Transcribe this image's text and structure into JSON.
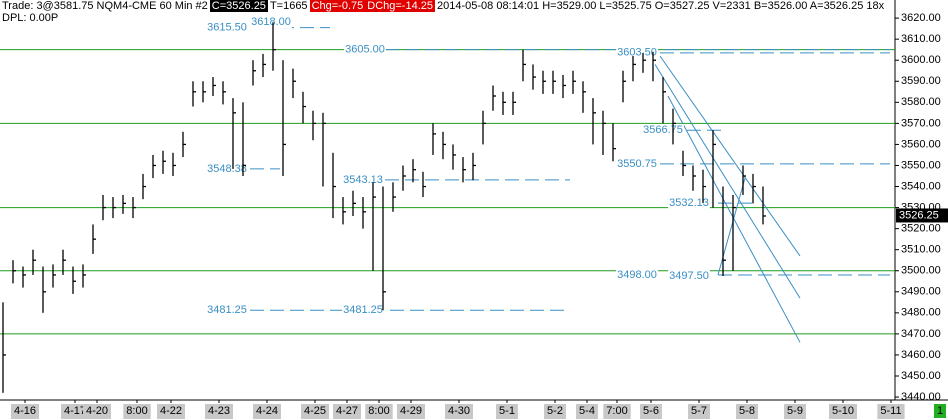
{
  "chart_data": {
    "type": "ohlc",
    "header": [
      {
        "text": "Trade: 3@3581.75  NQM4-CME  60 Min  #2",
        "style": "plain"
      },
      {
        "text": "C=3526.25",
        "style": "dark"
      },
      {
        "text": "T=1665",
        "style": "plain"
      },
      {
        "text": "Chg=-0.75",
        "style": "red"
      },
      {
        "text": "DChg=-14.25",
        "style": "red"
      },
      {
        "text": "2014-05-08 08:14:01 H=3529.00 L=3525.75 O=3527.25 V=2331 B=3526.00 A=3526.25 18x",
        "style": "plain"
      }
    ],
    "subheader": "DPL: 0.00P",
    "color": "#000000",
    "x": [
      0,
      5,
      10,
      15,
      20,
      25,
      30,
      35,
      40,
      45,
      50,
      55,
      60,
      65,
      70,
      75,
      80,
      85,
      90,
      95,
      100,
      105,
      110,
      115,
      120,
      125,
      130,
      135,
      140,
      145,
      150,
      155,
      160,
      165,
      170,
      175,
      180,
      185,
      190,
      195,
      200,
      205,
      210,
      215,
      220,
      225,
      230,
      235,
      240,
      245,
      250,
      255,
      260,
      265,
      270,
      275,
      280,
      285,
      290,
      295,
      300,
      305,
      310,
      315,
      320,
      325,
      330,
      335,
      340,
      345,
      350,
      355,
      360,
      365,
      370,
      375,
      380
    ],
    "high": [
      3485,
      3505,
      3502,
      3510,
      3502,
      3503,
      3510,
      3502,
      3503,
      3522,
      3536,
      3535,
      3536,
      3535,
      3546,
      3555,
      3557,
      3556,
      3566,
      3590,
      3590,
      3592,
      3590,
      3582,
      3580,
      3600,
      3603,
      3618,
      3600,
      3596,
      3585,
      3576,
      3575,
      3556,
      3535,
      3538,
      3535,
      3542,
      3540,
      3542,
      3550,
      3553,
      3547,
      3570,
      3566,
      3560,
      3554,
      3556,
      3576,
      3588,
      3585,
      3585,
      3605,
      3598,
      3595,
      3595,
      3593,
      3595,
      3590,
      3582,
      3576,
      3570,
      3595,
      3602,
      3603.5,
      3604,
      3592,
      3577,
      3557,
      3550,
      3548,
      3566.75,
      3540,
      3536,
      3550,
      3546,
      3540
    ],
    "low": [
      3442,
      3494,
      3492,
      3498,
      3480,
      3492,
      3498,
      3489,
      3492,
      3508,
      3524,
      3525,
      3527,
      3525,
      3534,
      3544,
      3546,
      3545,
      3554,
      3578,
      3580,
      3583,
      3579,
      3548.38,
      3545,
      3588,
      3592,
      3595,
      3545,
      3582,
      3570,
      3562,
      3540,
      3525,
      3522,
      3526,
      3520,
      3500,
      3481.25,
      3528,
      3538,
      3542,
      3535,
      3555,
      3553,
      3548,
      3542,
      3543,
      3560,
      3576,
      3574,
      3574,
      3590,
      3586,
      3584,
      3584,
      3582,
      3584,
      3575,
      3560,
      3555,
      3552,
      3580,
      3590,
      3594,
      3590,
      3570,
      3560,
      3545,
      3538,
      3532.13,
      3530,
      3497.5,
      3500,
      3536,
      3532,
      3522
    ],
    "close": [
      3460,
      3500,
      3498,
      3505,
      3490,
      3498,
      3505,
      3495,
      3498,
      3515,
      3530,
      3530,
      3532,
      3530,
      3540,
      3550,
      3552,
      3550,
      3560,
      3585,
      3585,
      3588,
      3585,
      3575,
      3550,
      3595,
      3598,
      3605,
      3560,
      3590,
      3578,
      3570,
      3570,
      3540,
      3528,
      3532,
      3528,
      3535,
      3490,
      3535,
      3545,
      3548,
      3540,
      3565,
      3560,
      3555,
      3548,
      3550,
      3570,
      3583,
      3580,
      3580,
      3598,
      3592,
      3590,
      3590,
      3588,
      3590,
      3585,
      3575,
      3570,
      3558,
      3590,
      3598,
      3600,
      3600,
      3585,
      3570,
      3550,
      3545,
      3540,
      3560,
      3505,
      3530,
      3545,
      3540,
      3526
    ],
    "xlim": [
      -1.5,
      446
    ],
    "ylim": [
      3438.6,
      3628.6
    ],
    "xticks": [
      {
        "value": 11,
        "label": "4-16"
      },
      {
        "value": 36,
        "label": "4-17"
      },
      {
        "value": 47,
        "label": "4-20"
      },
      {
        "value": 67,
        "label": "8:00"
      },
      {
        "value": 84,
        "label": "4-22"
      },
      {
        "value": 108,
        "label": "4-23"
      },
      {
        "value": 132,
        "label": "4-24"
      },
      {
        "value": 156,
        "label": "4-25"
      },
      {
        "value": 172,
        "label": "4-27"
      },
      {
        "value": 188,
        "label": "8:00"
      },
      {
        "value": 204,
        "label": "4-29"
      },
      {
        "value": 228,
        "label": "4-30"
      },
      {
        "value": 252,
        "label": "5-1"
      },
      {
        "value": 276,
        "label": "5-2"
      },
      {
        "value": 292,
        "label": "5-4"
      },
      {
        "value": 307,
        "label": "7:00"
      },
      {
        "value": 324,
        "label": "5-6"
      },
      {
        "value": 348,
        "label": "5-7"
      },
      {
        "value": 372,
        "label": "5-8"
      },
      {
        "value": 396,
        "label": "5-9"
      },
      {
        "value": 420,
        "label": "5-10"
      },
      {
        "value": 444,
        "label": "5-11"
      }
    ],
    "yticks": [
      {
        "value": 3440,
        "label": "3440.00"
      },
      {
        "value": 3450,
        "label": "3450.00"
      },
      {
        "value": 3460,
        "label": "3460.00"
      },
      {
        "value": 3470,
        "label": "3470.00"
      },
      {
        "value": 3480,
        "label": "3480.00"
      },
      {
        "value": 3490,
        "label": "3490.00"
      },
      {
        "value": 3500,
        "label": "3500.00"
      },
      {
        "value": 3510,
        "label": "3510.00"
      },
      {
        "value": 3520,
        "label": "3520.00"
      },
      {
        "value": 3530,
        "label": "3530.00"
      },
      {
        "value": 3540,
        "label": "3540.00"
      },
      {
        "value": 3550,
        "label": "3550.00"
      },
      {
        "value": 3560,
        "label": "3560.00"
      },
      {
        "value": 3570,
        "label": "3570.00"
      },
      {
        "value": 3580,
        "label": "3580.00"
      },
      {
        "value": 3590,
        "label": "3590.00"
      },
      {
        "value": 3600,
        "label": "3600.00"
      },
      {
        "value": 3610,
        "label": "3610.00"
      },
      {
        "value": 3620,
        "label": "3620.00"
      }
    ],
    "hlines": [
      3605,
      3570,
      3530,
      3500,
      3470
    ],
    "hline_color": "#1e9e1e",
    "level_color": "#3a8fc4",
    "levels": [
      {
        "value": 3615.5,
        "x1": 138.5,
        "x2": 163.5
      },
      {
        "value": 3605,
        "x1": 191,
        "x2": 443.5
      },
      {
        "value": 3603.5,
        "x1": 328.5,
        "x2": 443.5
      },
      {
        "value": 3548.38,
        "x1": 123.5,
        "x2": 138.5
      },
      {
        "value": 3543.13,
        "x1": 191,
        "x2": 283.5
      },
      {
        "value": 3566.75,
        "x1": 342,
        "x2": 362
      },
      {
        "value": 3550.75,
        "x1": 328.5,
        "x2": 443.5
      },
      {
        "value": 3532.13,
        "x1": 357.5,
        "x2": 376
      },
      {
        "value": 3498,
        "x1": 357.5,
        "x2": 443.5
      },
      {
        "value": 3481.25,
        "x1": 123.5,
        "x2": 283.5
      }
    ],
    "annotations": [
      {
        "text": "3615.50",
        "value": 3615.5,
        "x": 112
      },
      {
        "text": "3618.00",
        "value": 3618,
        "x": 134
      },
      {
        "text": "3605.00",
        "value": 3605,
        "x": 181
      },
      {
        "text": "3603.50",
        "value": 3603.5,
        "x": 317
      },
      {
        "text": "3548.38",
        "value": 3548.38,
        "x": 112
      },
      {
        "text": "3543.13",
        "value": 3543.13,
        "x": 180
      },
      {
        "text": "3566.75",
        "value": 3566.75,
        "x": 330
      },
      {
        "text": "3550.75",
        "value": 3550.75,
        "x": 317
      },
      {
        "text": "3532.13",
        "value": 3532.13,
        "x": 343
      },
      {
        "text": "3498.00",
        "value": 3498,
        "x": 317
      },
      {
        "text": "3497.50",
        "value": 3497.5,
        "x": 343
      },
      {
        "text": "3481.25",
        "value": 3481.25,
        "x": 112
      },
      {
        "text": "3481.25",
        "value": 3481.25,
        "x": 180
      }
    ],
    "trendlines": [
      {
        "x1": 328.5,
        "y1": 3602,
        "x2": 398.5,
        "y2": 3507
      },
      {
        "x1": 326,
        "y1": 3598,
        "x2": 398.5,
        "y2": 3487
      },
      {
        "x1": 332.5,
        "y1": 3583,
        "x2": 398.5,
        "y2": 3466
      },
      {
        "x1": 357.5,
        "y1": 3498,
        "x2": 371,
        "y2": 3544
      }
    ],
    "last_price": {
      "value": 3526.25,
      "label": "3526.25"
    },
    "page_indicator": "1"
  }
}
